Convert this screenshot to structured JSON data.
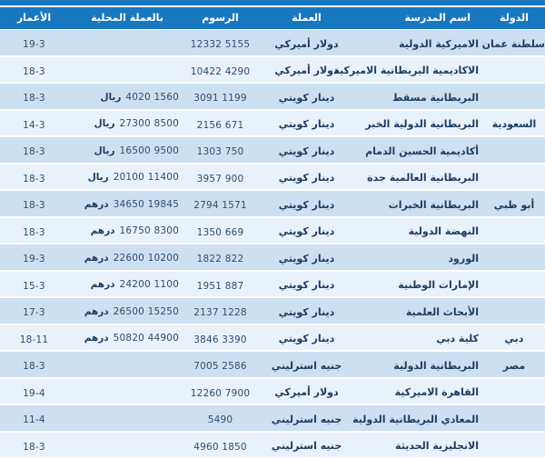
{
  "colors": {
    "header_bg": "#1878bf",
    "row_odd": "#cde0f2",
    "row_even": "#e9f1fa",
    "header_text": "#ffffff",
    "body_text": "#1b3c5f"
  },
  "table": {
    "columns": [
      {
        "key": "country",
        "label": "الدولة"
      },
      {
        "key": "school",
        "label": "اسم المدرسة"
      },
      {
        "key": "currency",
        "label": "العملة"
      },
      {
        "key": "fees",
        "label": "الرسوم"
      },
      {
        "key": "local",
        "label": "بالعملة المحلية"
      },
      {
        "key": "ages",
        "label": "الأعمار"
      }
    ],
    "rows": [
      {
        "country": "سلطنة عمان",
        "school": "الاميركية الدولية",
        "currency": "دولار أميركي",
        "fees": "12332 5155",
        "local_nums": "",
        "local_unit": "",
        "ages": "19-3"
      },
      {
        "country": "",
        "school": "الاكاديمية البريطانية الاميركية",
        "currency": "دولار أميركي",
        "fees": "10422 4290",
        "local_nums": "",
        "local_unit": "",
        "ages": "18-3"
      },
      {
        "country": "",
        "school": "البريطانية مسقط",
        "currency": "دينار كويتي",
        "fees": "3091 1199",
        "local_nums": "4020 1560",
        "local_unit": "ريال",
        "ages": "18-3"
      },
      {
        "country": "السعودية",
        "school": "البريطانية الدولية الخبر",
        "currency": "دينار كويتي",
        "fees": "2156 671",
        "local_nums": "27300 8500",
        "local_unit": "ريال",
        "ages": "14-3"
      },
      {
        "country": "",
        "school": "أكاديمية الحسين الدمام",
        "currency": "دينار كويتي",
        "fees": "1303 750",
        "local_nums": "16500 9500",
        "local_unit": "ريال",
        "ages": "18-3"
      },
      {
        "country": "",
        "school": "البريطانية العالمية جدة",
        "currency": "دينار كويتي",
        "fees": "3957 900",
        "local_nums": "20100 11400",
        "local_unit": "ريال",
        "ages": "18-3"
      },
      {
        "country": "أبو ظبي",
        "school": "البريطانية الخبرات",
        "currency": "دينار كويتي",
        "fees": "2794 1571",
        "local_nums": "34650 19845",
        "local_unit": "درهم",
        "ages": "18-3"
      },
      {
        "country": "",
        "school": "النهضة الدولية",
        "currency": "دينار كويتي",
        "fees": "1350 669",
        "local_nums": "16750 8300",
        "local_unit": "درهم",
        "ages": "18-3"
      },
      {
        "country": "",
        "school": "الورود",
        "currency": "دينار كويتي",
        "fees": "1822 822",
        "local_nums": "22600 10200",
        "local_unit": "درهم",
        "ages": "19-3"
      },
      {
        "country": "",
        "school": "الإمارات الوطنية",
        "currency": "دينار كويتي",
        "fees": "1951 887",
        "local_nums": "24200 1100",
        "local_unit": "درهم",
        "ages": "15-3"
      },
      {
        "country": "",
        "school": "الأبحاث العلمية",
        "currency": "دينار كويتي",
        "fees": "2137 1228",
        "local_nums": "26500 15250",
        "local_unit": "درهم",
        "ages": "17-3"
      },
      {
        "country": "دبي",
        "school": "كلية دبي",
        "currency": "دينار كويتي",
        "fees": "3846 3390",
        "local_nums": "50820 44900",
        "local_unit": "درهم",
        "ages": "18-11"
      },
      {
        "country": "مصر",
        "school": "البريطانية الدولية",
        "currency": "جنيه استرليني",
        "fees": "7005 2586",
        "local_nums": "",
        "local_unit": "",
        "ages": "18-3"
      },
      {
        "country": "",
        "school": "القاهرة الاميركية",
        "currency": "دولار أميركي",
        "fees": "12260 7900",
        "local_nums": "",
        "local_unit": "",
        "ages": "19-4"
      },
      {
        "country": "",
        "school": "المعادي البريطانية الدولية",
        "currency": "جنيه استرليني",
        "fees": "5490",
        "local_nums": "",
        "local_unit": "",
        "ages": "11-4"
      },
      {
        "country": "",
        "school": "الانجليزية الحديثة",
        "currency": "جنيه استرليني",
        "fees": "4960 1850",
        "local_nums": "",
        "local_unit": "",
        "ages": "18-3"
      }
    ]
  }
}
